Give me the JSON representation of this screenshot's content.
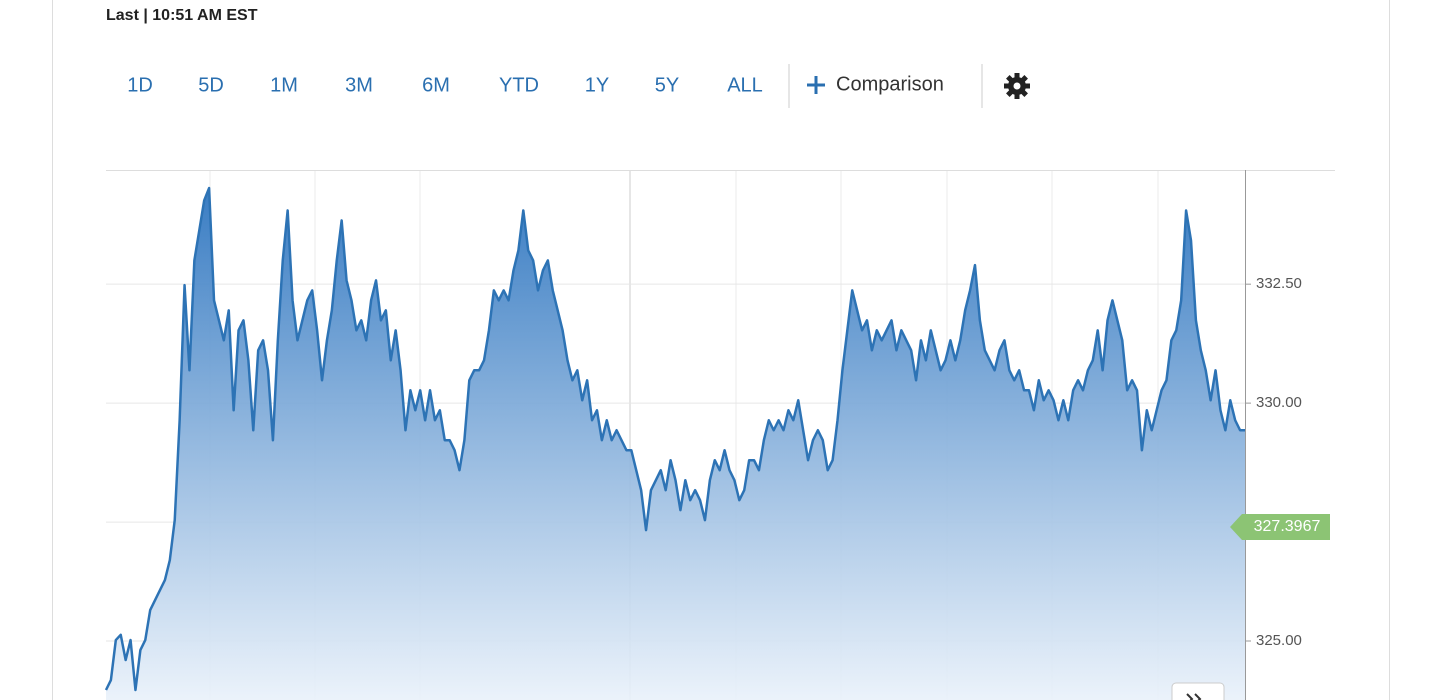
{
  "header": {
    "status": "Last | 10:51 AM EST"
  },
  "toolbar": {
    "ranges": [
      "1D",
      "5D",
      "1M",
      "3M",
      "6M",
      "YTD",
      "1Y",
      "5Y",
      "ALL"
    ],
    "comparison": "Comparison"
  },
  "chart_data": {
    "type": "area",
    "color": "#2d73b5",
    "values": [
      323.97,
      324.18,
      325.02,
      325.13,
      324.6,
      325.02,
      323.97,
      324.81,
      325.02,
      325.65,
      325.86,
      326.07,
      326.28,
      326.7,
      327.54,
      329.64,
      332.48,
      330.69,
      333.0,
      333.63,
      334.26,
      334.52,
      332.16,
      331.74,
      331.32,
      331.95,
      329.85,
      331.53,
      331.74,
      330.9,
      329.43,
      331.11,
      331.32,
      330.69,
      329.22,
      331.32,
      333.0,
      334.05,
      332.16,
      331.32,
      331.74,
      332.16,
      332.37,
      331.53,
      330.48,
      331.32,
      331.95,
      333.0,
      333.84,
      332.58,
      332.16,
      331.53,
      331.74,
      331.32,
      332.16,
      332.58,
      331.74,
      331.95,
      330.9,
      331.53,
      330.69,
      329.43,
      330.27,
      329.85,
      330.27,
      329.64,
      330.27,
      329.64,
      329.85,
      329.22,
      329.22,
      329.01,
      328.59,
      329.22,
      330.48,
      330.69,
      330.69,
      330.9,
      331.53,
      332.37,
      332.16,
      332.37,
      332.16,
      332.79,
      333.21,
      334.05,
      333.21,
      333.0,
      332.37,
      332.79,
      333.0,
      332.37,
      331.95,
      331.53,
      330.9,
      330.48,
      330.69,
      330.06,
      330.48,
      329.64,
      329.85,
      329.22,
      329.64,
      329.22,
      329.43,
      329.22,
      329.01,
      329.01,
      328.59,
      328.17,
      327.33,
      328.17,
      328.38,
      328.59,
      328.17,
      328.8,
      328.38,
      327.75,
      328.38,
      327.96,
      328.17,
      327.96,
      327.54,
      328.38,
      328.8,
      328.59,
      329.01,
      328.59,
      328.38,
      327.96,
      328.17,
      328.8,
      328.8,
      328.59,
      329.22,
      329.64,
      329.43,
      329.64,
      329.43,
      329.85,
      329.64,
      330.06,
      329.43,
      328.8,
      329.22,
      329.43,
      329.22,
      328.59,
      328.8,
      329.64,
      330.69,
      331.53,
      332.37,
      331.95,
      331.53,
      331.74,
      331.11,
      331.53,
      331.32,
      331.53,
      331.74,
      331.11,
      331.53,
      331.32,
      331.11,
      330.48,
      331.32,
      330.9,
      331.53,
      331.11,
      330.69,
      330.9,
      331.32,
      330.9,
      331.32,
      331.95,
      332.37,
      332.9,
      331.74,
      331.11,
      330.9,
      330.69,
      331.11,
      331.32,
      330.69,
      330.48,
      330.69,
      330.27,
      330.27,
      329.85,
      330.48,
      330.06,
      330.27,
      330.06,
      329.64,
      330.06,
      329.64,
      330.27,
      330.48,
      330.27,
      330.69,
      330.9,
      331.53,
      330.69,
      331.74,
      332.16,
      331.74,
      331.32,
      330.27,
      330.48,
      330.27,
      329.01,
      329.85,
      329.43,
      329.85,
      330.27,
      330.48,
      331.32,
      331.53,
      332.16,
      334.05,
      333.42,
      331.74,
      331.11,
      330.69,
      330.06,
      330.69,
      329.85,
      329.43,
      330.06,
      329.64,
      329.43,
      329.43
    ],
    "last_price": 327.3967,
    "last_price_color": "#8cc474",
    "ylim": [
      323.76,
      334.9
    ],
    "yticks": [
      {
        "value": 325,
        "label": "325.00"
      },
      {
        "value": 327.5,
        "label": null
      },
      {
        "value": 330,
        "label": "330.00"
      },
      {
        "value": 332.5,
        "label": "332.50"
      }
    ],
    "grid": true
  }
}
